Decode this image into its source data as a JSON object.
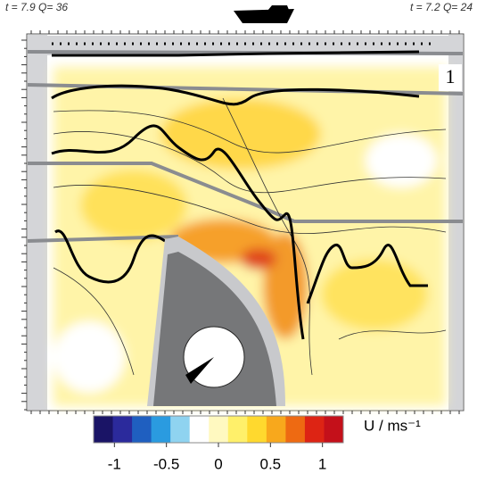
{
  "chart_data": {
    "type": "colorbar",
    "annotations": [
      "t = 7.9  Q= 36",
      "t = 7.2  Q= 24"
    ],
    "panel_label": "1",
    "colorbar_label": "U / ms⁻¹",
    "xlim": [
      -1.2,
      1.2
    ],
    "xticks": [
      -1,
      -0.5,
      0,
      0.5,
      1
    ],
    "colors": [
      "#1a1466",
      "#2b2a9c",
      "#1f5fc0",
      "#2a9be0",
      "#8fd3f0",
      "#ffffff",
      "#fff9c0",
      "#fff06a",
      "#ffd92e",
      "#f8a81c",
      "#ee6a12",
      "#dd2414",
      "#c4101a"
    ]
  }
}
